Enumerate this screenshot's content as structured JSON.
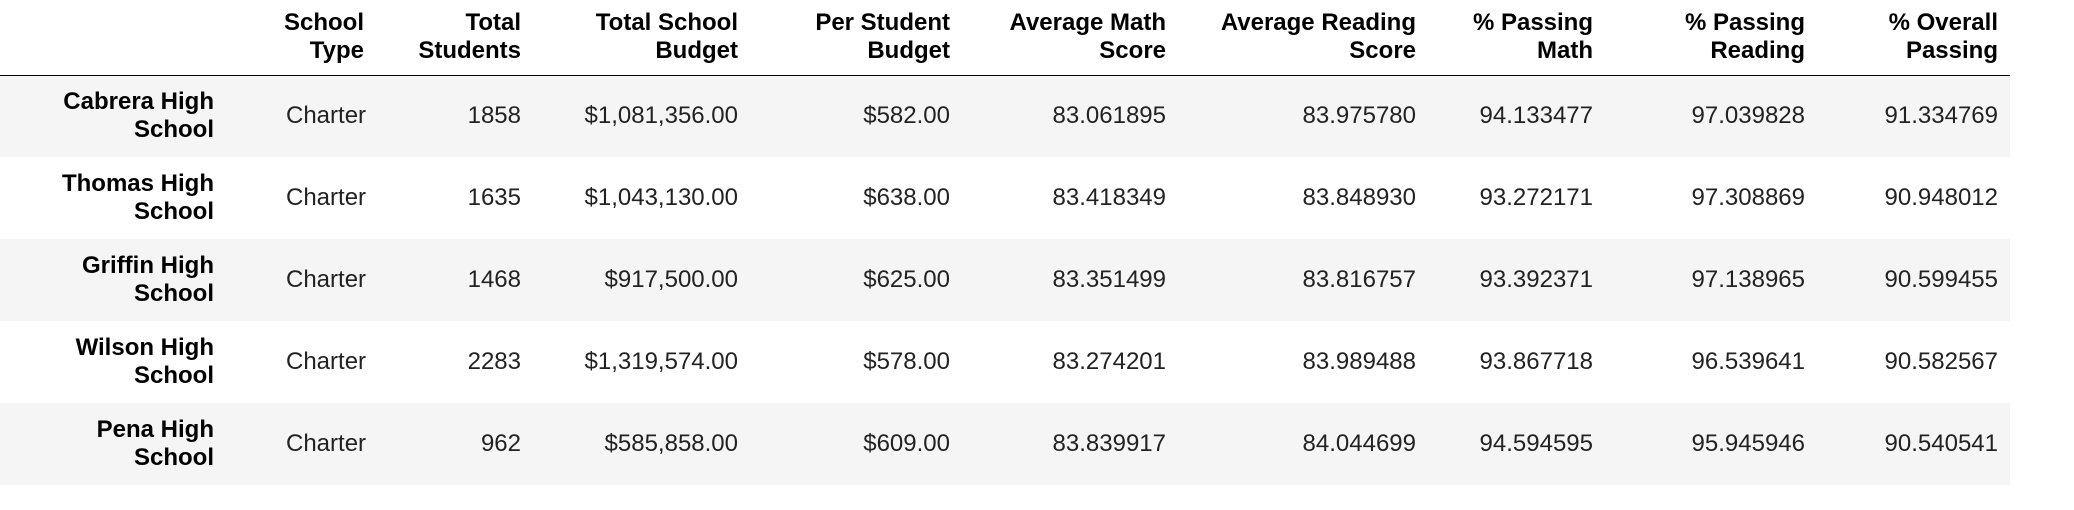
{
  "table": {
    "headers": [
      "",
      "School Type",
      "Total Students",
      "Total School Budget",
      "Per Student Budget",
      "Average Math Score",
      "Average Reading Score",
      "% Passing Math",
      "% Passing Reading",
      "% Overall Passing"
    ],
    "header_lines": [
      [
        "",
        ""
      ],
      [
        "School",
        "Type"
      ],
      [
        "Total",
        "Students"
      ],
      [
        "Total School",
        "Budget"
      ],
      [
        "Per Student",
        "Budget"
      ],
      [
        "Average Math",
        "Score"
      ],
      [
        "Average Reading",
        "Score"
      ],
      [
        "% Passing",
        "Math"
      ],
      [
        "% Passing",
        "Reading"
      ],
      [
        "% Overall",
        "Passing"
      ]
    ],
    "rows": [
      {
        "name_lines": [
          "Cabrera High",
          "School"
        ],
        "school_type": "Charter",
        "total_students": "1858",
        "total_budget": "$1,081,356.00",
        "per_student_budget": "$582.00",
        "avg_math": "83.061895",
        "avg_reading": "83.975780",
        "pct_math": "94.133477",
        "pct_reading": "97.039828",
        "pct_overall": "91.334769"
      },
      {
        "name_lines": [
          "Thomas High",
          "School"
        ],
        "school_type": "Charter",
        "total_students": "1635",
        "total_budget": "$1,043,130.00",
        "per_student_budget": "$638.00",
        "avg_math": "83.418349",
        "avg_reading": "83.848930",
        "pct_math": "93.272171",
        "pct_reading": "97.308869",
        "pct_overall": "90.948012"
      },
      {
        "name_lines": [
          "Griffin High",
          "School"
        ],
        "school_type": "Charter",
        "total_students": "1468",
        "total_budget": "$917,500.00",
        "per_student_budget": "$625.00",
        "avg_math": "83.351499",
        "avg_reading": "83.816757",
        "pct_math": "93.392371",
        "pct_reading": "97.138965",
        "pct_overall": "90.599455"
      },
      {
        "name_lines": [
          "Wilson High",
          "School"
        ],
        "school_type": "Charter",
        "total_students": "2283",
        "total_budget": "$1,319,574.00",
        "per_student_budget": "$578.00",
        "avg_math": "83.274201",
        "avg_reading": "83.989488",
        "pct_math": "93.867718",
        "pct_reading": "96.539641",
        "pct_overall": "90.582567"
      },
      {
        "name_lines": [
          "Pena High",
          "School"
        ],
        "school_type": "Charter",
        "total_students": "962",
        "total_budget": "$585,858.00",
        "per_student_budget": "$609.00",
        "avg_math": "83.839917",
        "avg_reading": "84.044699",
        "pct_math": "94.594595",
        "pct_reading": "95.945946",
        "pct_overall": "90.540541"
      }
    ]
  },
  "colors": {
    "row_stripe": "#f5f5f5",
    "row_plain": "#ffffff",
    "header_rule": "#000000"
  }
}
